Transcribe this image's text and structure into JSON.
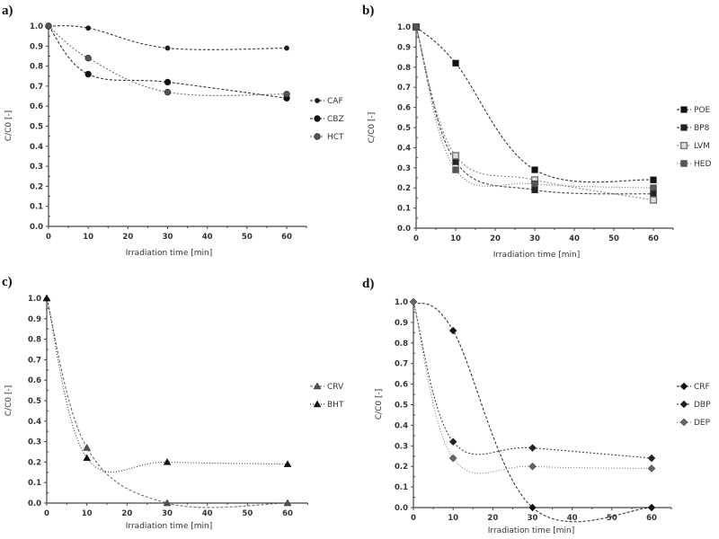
{
  "chart_data": [
    {
      "panel": "a)",
      "type": "line",
      "title": "",
      "xlabel": "Irradiation time [min]",
      "ylabel": "C/C0 [-]",
      "xlim": [
        0,
        65
      ],
      "ylim": [
        0,
        1.0
      ],
      "xticks": [
        0,
        10,
        20,
        30,
        40,
        50,
        60
      ],
      "yticks": [
        "0.0",
        "0.1",
        "0.2",
        "0.3",
        "0.4",
        "0.5",
        "0.6",
        "0.7",
        "0.8",
        "0.9",
        "1.0"
      ],
      "grid": false,
      "legend_position": "right",
      "x": [
        0,
        10,
        30,
        60
      ],
      "series": [
        {
          "name": "CAF",
          "marker": "circle-small",
          "color": "#1a1a1a",
          "dash": "3,2",
          "values": [
            1.0,
            0.99,
            0.89,
            0.89
          ]
        },
        {
          "name": "CBZ",
          "marker": "circle",
          "color": "#111111",
          "dash": "3,2",
          "values": [
            1.0,
            0.76,
            0.72,
            0.64
          ]
        },
        {
          "name": "HCT",
          "marker": "circle",
          "color": "#555555",
          "dash": "2,2",
          "values": [
            1.0,
            0.84,
            0.67,
            0.66
          ]
        }
      ]
    },
    {
      "panel": "b)",
      "type": "line",
      "title": "",
      "xlabel": "Irradiation time [min]",
      "ylabel": "C/C0 [-]",
      "xlim": [
        0,
        65
      ],
      "ylim": [
        0,
        1.0
      ],
      "xticks": [
        0,
        10,
        20,
        30,
        40,
        50,
        60
      ],
      "yticks": [
        "0.0",
        "0.1",
        "0.2",
        "0.3",
        "0.4",
        "0.5",
        "0.6",
        "0.7",
        "0.8",
        "0.9",
        "1.0"
      ],
      "grid": false,
      "legend_position": "right",
      "x": [
        0,
        10,
        30,
        60
      ],
      "series": [
        {
          "name": "POE",
          "marker": "square",
          "color": "#111111",
          "dash": "3,2",
          "values": [
            1.0,
            0.82,
            0.29,
            0.24
          ]
        },
        {
          "name": "BP8",
          "marker": "square",
          "color": "#222222",
          "dash": "3,2",
          "values": [
            1.0,
            0.33,
            0.19,
            0.17
          ]
        },
        {
          "name": "LVM",
          "marker": "square-open",
          "color": "#777777",
          "dash": "2,2",
          "values": [
            1.0,
            0.36,
            0.24,
            0.14
          ]
        },
        {
          "name": "HED",
          "marker": "square",
          "color": "#555555",
          "dash": "1,2",
          "values": [
            1.0,
            0.29,
            0.22,
            0.2
          ]
        }
      ]
    },
    {
      "panel": "c)",
      "type": "line",
      "title": "",
      "xlabel": "Irradiation time [min]",
      "ylabel": "C/C0 [-]",
      "xlim": [
        0,
        65
      ],
      "ylim": [
        0,
        1.0
      ],
      "xticks": [
        0,
        10,
        20,
        30,
        40,
        50,
        60
      ],
      "yticks": [
        "0.0",
        "0.1",
        "0.2",
        "0.3",
        "0.4",
        "0.5",
        "0.6",
        "0.7",
        "0.8",
        "0.9",
        "1.0"
      ],
      "grid": false,
      "legend_position": "right",
      "x": [
        0,
        10,
        30,
        60
      ],
      "series": [
        {
          "name": "CRV",
          "marker": "triangle",
          "color": "#555555",
          "dash": "3,2",
          "values": [
            1.0,
            0.27,
            0.0,
            0.0
          ]
        },
        {
          "name": "BHT",
          "marker": "triangle",
          "color": "#111111",
          "dash": "1,2",
          "values": [
            1.0,
            0.22,
            0.2,
            0.19
          ]
        }
      ]
    },
    {
      "panel": "d)",
      "type": "line",
      "title": "",
      "xlabel": "Irradiation time [min]",
      "ylabel": "C/C0 [-]",
      "xlim": [
        0,
        65
      ],
      "ylim": [
        0,
        1.0
      ],
      "xticks": [
        0,
        10,
        20,
        30,
        40,
        50,
        60
      ],
      "yticks": [
        "0.0",
        "0.1",
        "0.2",
        "0.3",
        "0.4",
        "0.5",
        "0.6",
        "0.7",
        "0.8",
        "0.9",
        "1.0"
      ],
      "grid": false,
      "legend_position": "right",
      "x": [
        0,
        10,
        30,
        60
      ],
      "series": [
        {
          "name": "CRF",
          "marker": "diamond",
          "color": "#111111",
          "dash": "3,2",
          "values": [
            1.0,
            0.86,
            0.0,
            0.0
          ]
        },
        {
          "name": "DBP",
          "marker": "diamond",
          "color": "#222222",
          "dash": "2,2",
          "values": [
            1.0,
            0.32,
            0.29,
            0.24
          ]
        },
        {
          "name": "DEP",
          "marker": "diamond",
          "color": "#666666",
          "dash": "1,2",
          "values": [
            1.0,
            0.24,
            0.2,
            0.19
          ]
        }
      ]
    }
  ]
}
